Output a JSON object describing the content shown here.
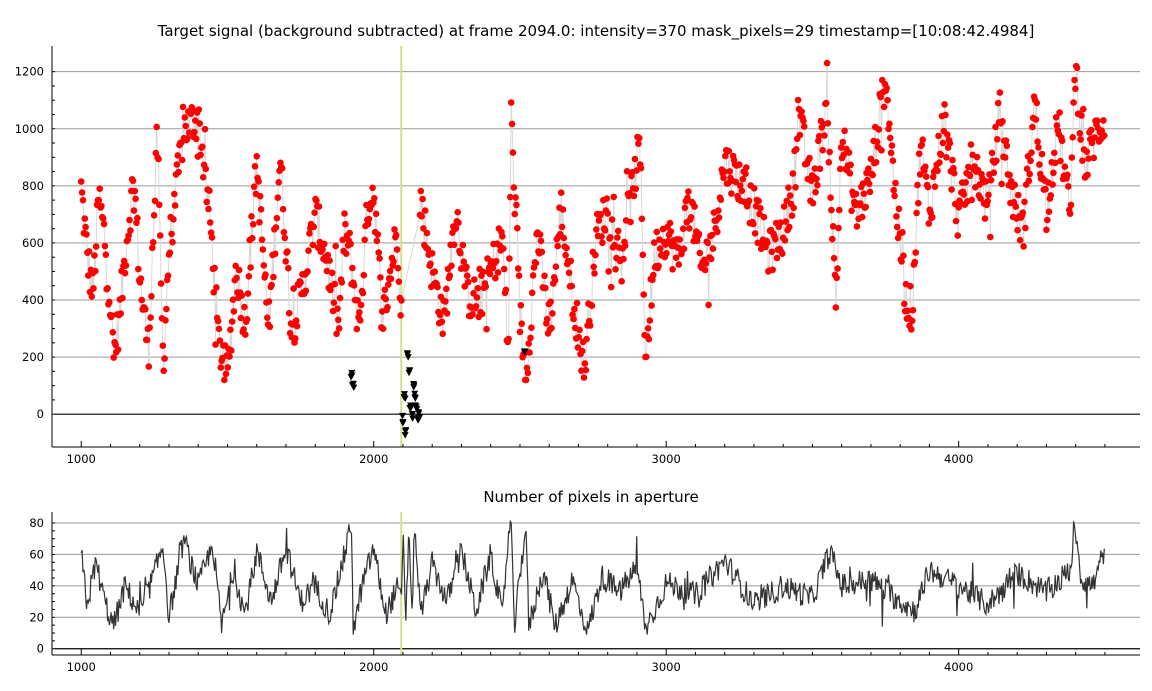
{
  "chart_data": [
    {
      "type": "scatter",
      "title": "Target signal (background subtracted) at frame 2094.0: intensity=370 mask_pixels=29 timestamp=[10:08:42.4984]",
      "xlabel": "",
      "ylabel": "",
      "xlim": [
        900,
        4620
      ],
      "ylim": [
        -115,
        1290
      ],
      "x_ticks": [
        1000,
        2000,
        3000,
        4000
      ],
      "y_ticks": [
        0,
        200,
        400,
        600,
        800,
        1000,
        1200
      ],
      "grid": true,
      "current_frame": 2094,
      "series": [
        {
          "color": "#ff0000",
          "marker": "circle",
          "line_color": "#d8d8d8",
          "x_range": [
            1000,
            4500
          ],
          "points_sampled": [
            [
              1000,
              790
            ],
            [
              1020,
              560
            ],
            [
              1040,
              420
            ],
            [
              1060,
              760
            ],
            [
              1080,
              620
            ],
            [
              1100,
              380
            ],
            [
              1110,
              200
            ],
            [
              1130,
              330
            ],
            [
              1150,
              560
            ],
            [
              1180,
              830
            ],
            [
              1200,
              480
            ],
            [
              1230,
              220
            ],
            [
              1260,
              980
            ],
            [
              1280,
              170
            ],
            [
              1300,
              570
            ],
            [
              1350,
              1000
            ],
            [
              1400,
              1040
            ],
            [
              1440,
              690
            ],
            [
              1470,
              250
            ],
            [
              1500,
              130
            ],
            [
              1530,
              520
            ],
            [
              1560,
              310
            ],
            [
              1600,
              880
            ],
            [
              1640,
              290
            ],
            [
              1680,
              900
            ],
            [
              1720,
              290
            ],
            [
              1760,
              460
            ],
            [
              1800,
              700
            ],
            [
              1840,
              540
            ],
            [
              1880,
              300
            ],
            [
              1900,
              640
            ],
            [
              1920,
              560
            ],
            [
              1950,
              300
            ],
            [
              1980,
              730
            ],
            [
              2000,
              790
            ],
            [
              2030,
              330
            ],
            [
              2060,
              520
            ],
            [
              2080,
              640
            ],
            [
              2095,
              370
            ],
            [
              2160,
              750
            ],
            [
              2200,
              500
            ],
            [
              2240,
              320
            ],
            [
              2280,
              720
            ],
            [
              2320,
              420
            ],
            [
              2360,
              390
            ],
            [
              2400,
              500
            ],
            [
              2440,
              620
            ],
            [
              2460,
              200
            ],
            [
              2470,
              1040
            ],
            [
              2500,
              350
            ],
            [
              2520,
              130
            ],
            [
              2560,
              640
            ],
            [
              2600,
              280
            ],
            [
              2640,
              720
            ],
            [
              2680,
              420
            ],
            [
              2720,
              160
            ],
            [
              2760,
              620
            ],
            [
              2800,
              720
            ],
            [
              2840,
              520
            ],
            [
              2880,
              760
            ],
            [
              2910,
              940
            ],
            [
              2930,
              190
            ],
            [
              2960,
              560
            ],
            [
              3000,
              640
            ],
            [
              3040,
              540
            ],
            [
              3080,
              760
            ],
            [
              3120,
              500
            ],
            [
              3160,
              620
            ],
            [
              3200,
              880
            ],
            [
              3250,
              820
            ],
            [
              3300,
              720
            ],
            [
              3350,
              560
            ],
            [
              3400,
              640
            ],
            [
              3440,
              820
            ],
            [
              3450,
              1070
            ],
            [
              3500,
              760
            ],
            [
              3550,
              1100
            ],
            [
              3580,
              380
            ],
            [
              3600,
              980
            ],
            [
              3650,
              700
            ],
            [
              3700,
              830
            ],
            [
              3750,
              1190
            ],
            [
              3780,
              800
            ],
            [
              3820,
              400
            ],
            [
              3840,
              360
            ],
            [
              3870,
              960
            ],
            [
              3900,
              700
            ],
            [
              3950,
              1040
            ],
            [
              4000,
              680
            ],
            [
              4050,
              900
            ],
            [
              4100,
              720
            ],
            [
              4140,
              1060
            ],
            [
              4180,
              780
            ],
            [
              4220,
              640
            ],
            [
              4260,
              1090
            ],
            [
              4300,
              720
            ],
            [
              4340,
              1020
            ],
            [
              4380,
              700
            ],
            [
              4400,
              1230
            ],
            [
              4430,
              860
            ],
            [
              4460,
              960
            ],
            [
              4480,
              1000
            ],
            [
              4500,
              1040
            ]
          ]
        },
        {
          "color": "#000000",
          "marker": "triangle-down",
          "points": [
            [
              1925,
              130
            ],
            [
              1930,
              95
            ],
            [
              2100,
              -20
            ],
            [
              2105,
              60
            ],
            [
              2110,
              -70
            ],
            [
              2115,
              200
            ],
            [
              2120,
              160
            ],
            [
              2125,
              30
            ],
            [
              2130,
              -10
            ],
            [
              2135,
              100
            ],
            [
              2140,
              60
            ],
            [
              2145,
              20
            ],
            [
              2150,
              -10
            ],
            [
              2155,
              0
            ],
            [
              2515,
              230
            ]
          ]
        }
      ]
    },
    {
      "type": "line",
      "title": "Number of pixels in aperture",
      "xlabel": "",
      "ylabel": "",
      "xlim": [
        900,
        4620
      ],
      "ylim": [
        -4,
        87
      ],
      "x_ticks": [
        1000,
        2000,
        3000,
        4000
      ],
      "y_ticks": [
        0,
        20,
        40,
        60,
        80
      ],
      "grid": true,
      "current_frame": 2094,
      "series": [
        {
          "color": "#333333",
          "x_range": [
            1000,
            4500
          ],
          "points_sampled": [
            [
              1000,
              60
            ],
            [
              1020,
              28
            ],
            [
              1050,
              55
            ],
            [
              1080,
              30
            ],
            [
              1110,
              14
            ],
            [
              1150,
              40
            ],
            [
              1200,
              22
            ],
            [
              1250,
              48
            ],
            [
              1280,
              66
            ],
            [
              1300,
              20
            ],
            [
              1350,
              70
            ],
            [
              1400,
              40
            ],
            [
              1450,
              66
            ],
            [
              1480,
              14
            ],
            [
              1520,
              50
            ],
            [
              1560,
              22
            ],
            [
              1600,
              62
            ],
            [
              1650,
              30
            ],
            [
              1700,
              64
            ],
            [
              1750,
              30
            ],
            [
              1800,
              40
            ],
            [
              1850,
              22
            ],
            [
              1900,
              60
            ],
            [
              1925,
              80
            ],
            [
              1930,
              10
            ],
            [
              1960,
              40
            ],
            [
              2000,
              64
            ],
            [
              2040,
              22
            ],
            [
              2080,
              38
            ],
            [
              2095,
              29
            ],
            [
              2100,
              80
            ],
            [
              2110,
              14
            ],
            [
              2120,
              80
            ],
            [
              2130,
              16
            ],
            [
              2140,
              80
            ],
            [
              2160,
              20
            ],
            [
              2200,
              54
            ],
            [
              2250,
              30
            ],
            [
              2300,
              62
            ],
            [
              2350,
              24
            ],
            [
              2400,
              60
            ],
            [
              2440,
              20
            ],
            [
              2460,
              72
            ],
            [
              2470,
              80
            ],
            [
              2480,
              12
            ],
            [
              2520,
              80
            ],
            [
              2530,
              14
            ],
            [
              2580,
              50
            ],
            [
              2620,
              14
            ],
            [
              2680,
              44
            ],
            [
              2730,
              10
            ],
            [
              2780,
              46
            ],
            [
              2840,
              36
            ],
            [
              2900,
              52
            ],
            [
              2930,
              12
            ],
            [
              3000,
              42
            ],
            [
              3100,
              34
            ],
            [
              3200,
              56
            ],
            [
              3300,
              28
            ],
            [
              3400,
              40
            ],
            [
              3500,
              32
            ],
            [
              3560,
              62
            ],
            [
              3600,
              40
            ],
            [
              3700,
              44
            ],
            [
              3800,
              30
            ],
            [
              3850,
              24
            ],
            [
              3900,
              50
            ],
            [
              4000,
              40
            ],
            [
              4100,
              28
            ],
            [
              4200,
              48
            ],
            [
              4300,
              36
            ],
            [
              4380,
              50
            ],
            [
              4400,
              76
            ],
            [
              4420,
              44
            ],
            [
              4460,
              40
            ],
            [
              4500,
              64
            ]
          ]
        }
      ]
    }
  ]
}
